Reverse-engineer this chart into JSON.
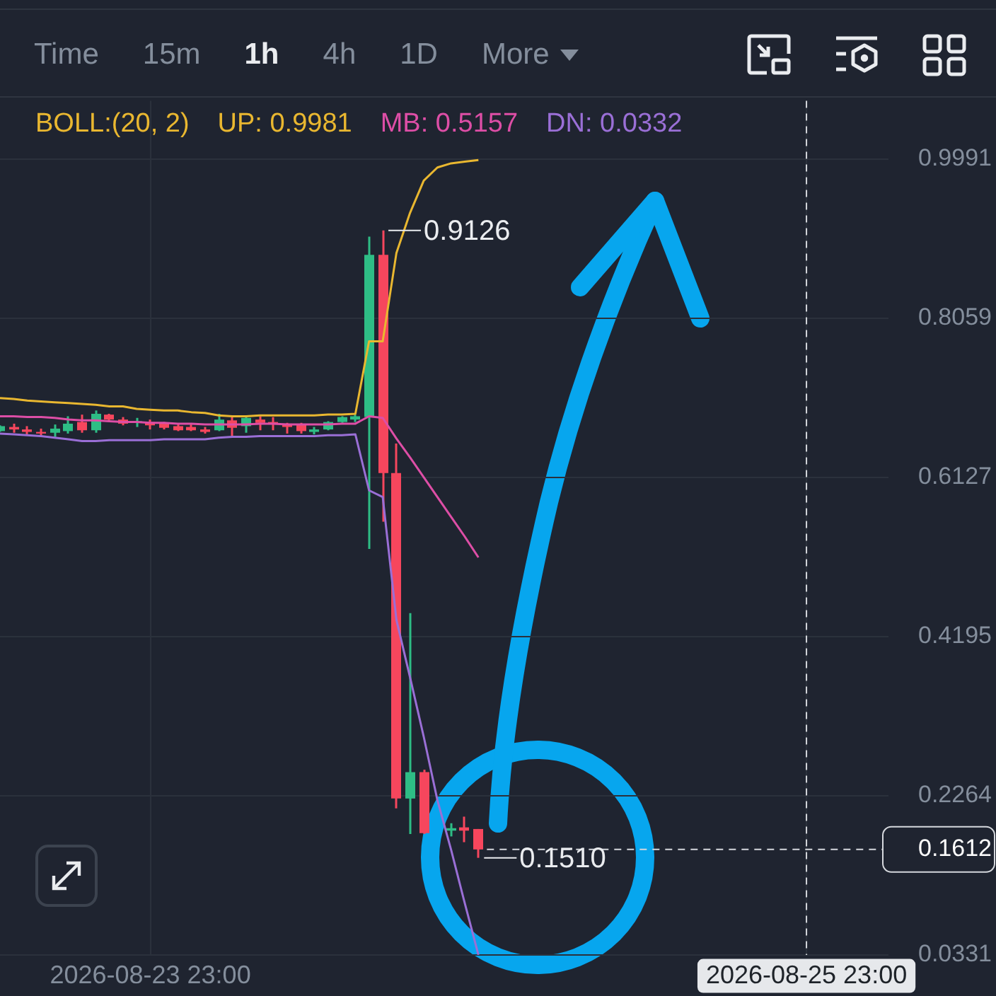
{
  "chart_data": {
    "type": "candlestick",
    "legend_title": "BOLL:(20, 2)",
    "legend": "top left",
    "grid": true,
    "marker": "none",
    "x": [
      "2026-08-23T12:00",
      "2026-08-23T13:00",
      "2026-08-23T14:00",
      "2026-08-23T15:00",
      "2026-08-23T16:00",
      "2026-08-23T17:00",
      "2026-08-23T18:00",
      "2026-08-23T19:00",
      "2026-08-23T20:00",
      "2026-08-23T21:00",
      "2026-08-23T22:00",
      "2026-08-23T23:00",
      "2026-08-24T00:00",
      "2026-08-24T01:00",
      "2026-08-24T02:00",
      "2026-08-24T03:00",
      "2026-08-24T04:00",
      "2026-08-24T05:00",
      "2026-08-24T06:00",
      "2026-08-24T07:00",
      "2026-08-24T08:00",
      "2026-08-24T09:00",
      "2026-08-24T10:00",
      "2026-08-24T11:00",
      "2026-08-24T12:00",
      "2026-08-24T13:00",
      "2026-08-24T14:00",
      "2026-08-24T15:00",
      "2026-08-24T16:00",
      "2026-08-24T17:00",
      "2026-08-24T18:00",
      "2026-08-24T19:00",
      "2026-08-24T20:00",
      "2026-08-24T21:00",
      "2026-08-24T22:00",
      "2026-08-24T23:00"
    ],
    "ohlc": [
      [
        0.669,
        0.676,
        0.668,
        0.675
      ],
      [
        0.674,
        0.678,
        0.667,
        0.671
      ],
      [
        0.671,
        0.675,
        0.664,
        0.668
      ],
      [
        0.668,
        0.672,
        0.663,
        0.666
      ],
      [
        0.667,
        0.677,
        0.662,
        0.672
      ],
      [
        0.669,
        0.687,
        0.666,
        0.678
      ],
      [
        0.68,
        0.689,
        0.667,
        0.67
      ],
      [
        0.67,
        0.694,
        0.667,
        0.69
      ],
      [
        0.689,
        0.69,
        0.681,
        0.683
      ],
      [
        0.683,
        0.686,
        0.676,
        0.678
      ],
      [
        0.679,
        0.685,
        0.674,
        0.681
      ],
      [
        0.68,
        0.683,
        0.671,
        0.676
      ],
      [
        0.678,
        0.68,
        0.671,
        0.673
      ],
      [
        0.675,
        0.678,
        0.669,
        0.67
      ],
      [
        0.674,
        0.677,
        0.669,
        0.67
      ],
      [
        0.671,
        0.674,
        0.666,
        0.668
      ],
      [
        0.67,
        0.69,
        0.669,
        0.683
      ],
      [
        0.682,
        0.686,
        0.663,
        0.673
      ],
      [
        0.675,
        0.688,
        0.667,
        0.685
      ],
      [
        0.683,
        0.687,
        0.67,
        0.679
      ],
      [
        0.68,
        0.686,
        0.67,
        0.677
      ],
      [
        0.678,
        0.679,
        0.666,
        0.674
      ],
      [
        0.677,
        0.679,
        0.666,
        0.669
      ],
      [
        0.668,
        0.674,
        0.665,
        0.671
      ],
      [
        0.671,
        0.681,
        0.67,
        0.68
      ],
      [
        0.68,
        0.687,
        0.679,
        0.686
      ],
      [
        0.683,
        0.689,
        0.68,
        0.687
      ],
      [
        0.686,
        0.905,
        0.526,
        0.883
      ],
      [
        0.883,
        0.9126,
        0.559,
        0.618
      ],
      [
        0.618,
        0.654,
        0.211,
        0.223
      ],
      [
        0.223,
        0.448,
        0.18,
        0.255
      ],
      [
        0.255,
        0.258,
        0.18,
        0.181
      ],
      null,
      [
        0.184,
        0.193,
        0.177,
        0.187
      ],
      [
        0.188,
        0.201,
        0.17,
        0.184
      ],
      [
        0.186,
        0.186,
        0.151,
        0.1612
      ]
    ],
    "colors": [
      "#2ebd85",
      "#f6465d",
      "#f6465d",
      "#f6465d",
      "#2ebd85",
      "#2ebd85",
      "#f6465d",
      "#2ebd85",
      "#f6465d",
      "#f6465d",
      "#2ebd85",
      "#f6465d",
      "#f6465d",
      "#f6465d",
      "#f6465d",
      "#f6465d",
      "#2ebd85",
      "#f6465d",
      "#2ebd85",
      "#f6465d",
      "#f6465d",
      "#f6465d",
      "#f6465d",
      "#2ebd85",
      "#2ebd85",
      "#2ebd85",
      "#2ebd85",
      "#2ebd85",
      "#f6465d",
      "#f6465d",
      "#2ebd85",
      "#f6465d",
      null,
      "#2ebd85",
      "#f6465d",
      "#f6465d"
    ],
    "series": [
      {
        "name": "UP: 0.9981",
        "type": "line",
        "color": "#e9b730",
        "values": [
          0.709,
          0.708,
          0.706,
          0.705,
          0.704,
          0.703,
          0.702,
          0.701,
          0.699,
          0.699,
          0.696,
          0.695,
          0.694,
          0.694,
          0.692,
          0.691,
          0.688,
          0.687,
          0.687,
          0.688,
          0.688,
          0.688,
          0.688,
          0.688,
          0.689,
          0.689,
          0.69,
          0.778,
          0.778,
          0.885,
          0.934,
          0.973,
          0.989,
          0.994,
          0.996,
          0.9981
        ]
      },
      {
        "name": "MB: 0.5157",
        "type": "line",
        "color": "#dd4ea6",
        "values": [
          0.687,
          0.687,
          0.686,
          0.686,
          0.685,
          0.683,
          0.682,
          0.682,
          0.681,
          0.68,
          0.68,
          0.679,
          0.679,
          0.678,
          0.678,
          0.677,
          0.677,
          0.677,
          0.677,
          0.678,
          0.678,
          0.677,
          0.677,
          0.677,
          0.677,
          0.678,
          0.678,
          0.687,
          0.685,
          0.66,
          0.637,
          0.613,
          0.589,
          0.565,
          0.541,
          0.5157
        ]
      },
      {
        "name": "DN: 0.0332",
        "type": "line",
        "color": "#9a6fd6",
        "values": [
          0.666,
          0.665,
          0.664,
          0.663,
          0.661,
          0.659,
          0.657,
          0.657,
          0.658,
          0.658,
          0.658,
          0.658,
          0.659,
          0.659,
          0.659,
          0.659,
          0.661,
          0.662,
          0.662,
          0.663,
          0.663,
          0.663,
          0.663,
          0.663,
          0.664,
          0.664,
          0.665,
          0.597,
          0.589,
          0.44,
          0.37,
          0.298,
          0.221,
          0.161,
          0.096,
          0.0332
        ]
      }
    ],
    "xlim": [
      "2026-08-23T12:00",
      "2026-08-26T05:00"
    ],
    "xticks": [
      {
        "value": "2026-08-23T23:00",
        "label": "2026-08-23 23:00"
      },
      {
        "value": "2026-08-25T23:00",
        "label": "2026-08-25 23:00"
      }
    ],
    "ylim": [
      0.0331,
      1.07
    ],
    "yticks": [
      0.0331,
      0.1612,
      0.2264,
      0.4195,
      0.6127,
      0.8059,
      0.9991
    ],
    "ref_lines": [
      {
        "axis": "y",
        "value": 0.1612,
        "color": "#d5d8dd",
        "line_style": "dashed"
      },
      {
        "axis": "x",
        "value": "2026-08-25T23:00",
        "color": "#d5d8dd",
        "line_style": "dashed"
      }
    ],
    "annotations": [
      "Time",
      "15m",
      "1h",
      "4h",
      "1D",
      "More",
      {
        "text": "0.9126",
        "x": "2026-08-24T16:00",
        "y": 0.9126
      },
      {
        "text": "0.1510",
        "x": "2026-08-24T23:00",
        "y": 0.151
      }
    ]
  }
}
